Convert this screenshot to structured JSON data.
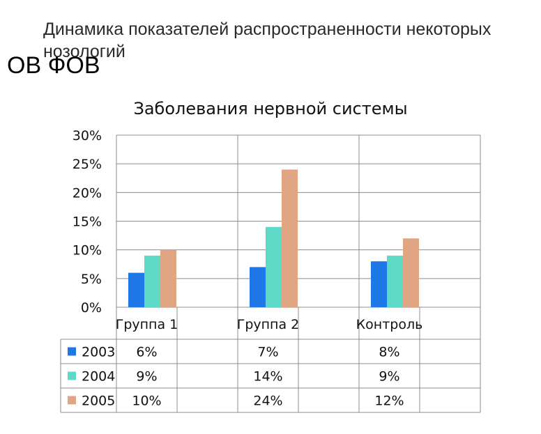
{
  "slide": {
    "title": "Динамика показателей распространенности некоторых нозологий",
    "subtitle": "ОВ ФОВ"
  },
  "chart_data": {
    "type": "bar",
    "title": "Заболевания нервной системы",
    "categories": [
      "Группа 1",
      "Группа 2",
      "Контроль"
    ],
    "series": [
      {
        "name": "2003",
        "values": [
          6,
          7,
          8
        ],
        "labels": [
          "6%",
          "7%",
          "8%"
        ],
        "color": "#1f78e8"
      },
      {
        "name": "2004",
        "values": [
          9,
          14,
          9
        ],
        "labels": [
          "9%",
          "14%",
          "9%"
        ],
        "color": "#5ed9c8"
      },
      {
        "name": "2005",
        "values": [
          10,
          24,
          12
        ],
        "labels": [
          "10%",
          "24%",
          "12%"
        ],
        "color": "#e0a683"
      }
    ],
    "ylim": [
      0,
      30
    ],
    "yticks": [
      "0%",
      "5%",
      "10%",
      "15%",
      "20%",
      "25%",
      "30%"
    ],
    "xlabel": "",
    "ylabel": "",
    "grid": true,
    "legend": "data-table"
  }
}
